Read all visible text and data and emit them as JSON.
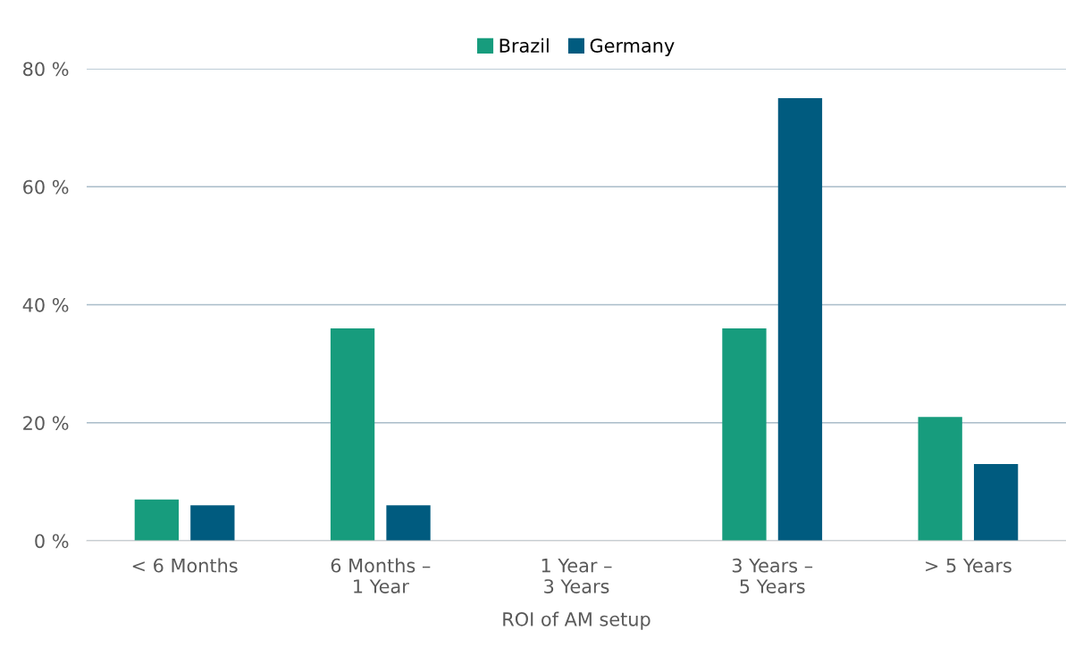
{
  "chart_data": {
    "type": "bar",
    "xlabel": "ROI of AM setup",
    "categories": [
      "< 6 Months",
      "6 Months –\n1 Year",
      "1 Year –\n3 Years",
      "3 Years –\n5 Years",
      "> 5 Years"
    ],
    "series": [
      {
        "name": "Brazil",
        "color": "#179c7d",
        "values": [
          7,
          36,
          0,
          36,
          21
        ]
      },
      {
        "name": "Germany",
        "color": "#005b7f",
        "values": [
          6,
          6,
          0,
          75,
          13
        ]
      }
    ],
    "ylim": [
      0,
      80
    ],
    "yticks": [
      {
        "value": 0,
        "label": "0 %"
      },
      {
        "value": 20,
        "label": "20 %"
      },
      {
        "value": 40,
        "label": "40 %"
      },
      {
        "value": 60,
        "label": "60 %"
      },
      {
        "value": 80,
        "label": "80 %"
      }
    ],
    "grid": "y",
    "legend": "top"
  }
}
